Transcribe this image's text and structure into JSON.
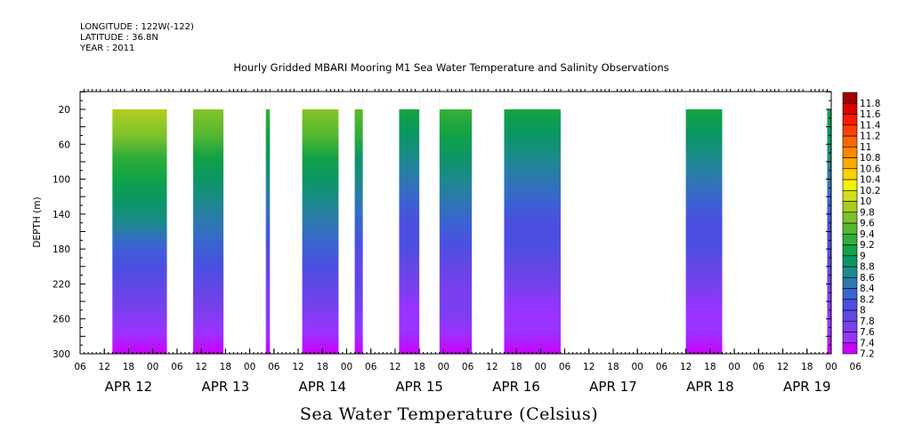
{
  "header": {
    "longitude": "LONGITUDE : 122W(-122)",
    "latitude": "LATITUDE : 36.8N",
    "year": "YEAR : 2011"
  },
  "chart_data": {
    "type": "heatmap",
    "title": "Hourly Gridded MBARI Mooring M1 Sea Water Temperature and Salinity Observations",
    "xlabel": "",
    "ylabel": "DEPTH (m)",
    "colorbar_label": "Sea Water Temperature (Celsius)",
    "y_ticks": [
      20,
      60,
      100,
      140,
      180,
      220,
      260,
      300
    ],
    "y_range": [
      5,
      300
    ],
    "x_hour_ticks": [
      "06",
      "12",
      "18",
      "00",
      "06",
      "12",
      "18",
      "00",
      "06",
      "12",
      "18",
      "00",
      "06",
      "12",
      "18",
      "00",
      "06",
      "12",
      "18",
      "00",
      "06",
      "12",
      "18",
      "00",
      "06",
      "12",
      "18",
      "00",
      "06",
      "12",
      "18",
      "00",
      "06"
    ],
    "day_labels": [
      {
        "label": "APR 12",
        "hour": 18
      },
      {
        "label": "APR 13",
        "hour": 42
      },
      {
        "label": "APR 14",
        "hour": 66
      },
      {
        "label": "APR 15",
        "hour": 90
      },
      {
        "label": "APR 16",
        "hour": 114
      },
      {
        "label": "APR 17",
        "hour": 138
      },
      {
        "label": "APR 18",
        "hour": 162
      },
      {
        "label": "APR 19",
        "hour": 186
      }
    ],
    "x_range_hours": [
      6,
      192
    ],
    "data_blocks": [
      {
        "start": 14,
        "end": 27.5,
        "surface_temp": 10.4
      },
      {
        "start": 34,
        "end": 41.5,
        "surface_temp": 10.1
      },
      {
        "start": 52,
        "end": 53,
        "surface_temp": 9.6
      },
      {
        "start": 61,
        "end": 70,
        "surface_temp": 10.1
      },
      {
        "start": 74,
        "end": 76,
        "surface_temp": 9.8
      },
      {
        "start": 85,
        "end": 90,
        "surface_temp": 9.4
      },
      {
        "start": 95,
        "end": 103,
        "surface_temp": 9.7
      },
      {
        "start": 111,
        "end": 125,
        "surface_temp": 9.4
      },
      {
        "start": 156,
        "end": 165,
        "surface_temp": 9.4
      },
      {
        "start": 191,
        "end": 192,
        "surface_temp": 9.4
      }
    ],
    "colorbar": {
      "levels": [
        "7.2",
        "7.4",
        "7.6",
        "7.8",
        "8",
        "8.2",
        "8.4",
        "8.6",
        "8.8",
        "9",
        "9.2",
        "9.4",
        "9.6",
        "9.8",
        "10",
        "10.2",
        "10.4",
        "10.6",
        "10.8",
        "11",
        "11.2",
        "11.4",
        "11.6",
        "11.8"
      ],
      "colors": [
        "#cc00ff",
        "#9933ff",
        "#7a3fee",
        "#6347e6",
        "#4a4fe0",
        "#3a64d2",
        "#2d78b0",
        "#1c8a8a",
        "#0a9664",
        "#10a246",
        "#30ad3a",
        "#54b830",
        "#7ec22a",
        "#a8cc22",
        "#d2de18",
        "#f2f208",
        "#ffd000",
        "#ffaa00",
        "#ff8800",
        "#ff6600",
        "#ff4000",
        "#ff1a00",
        "#e00000",
        "#a00000"
      ]
    }
  }
}
